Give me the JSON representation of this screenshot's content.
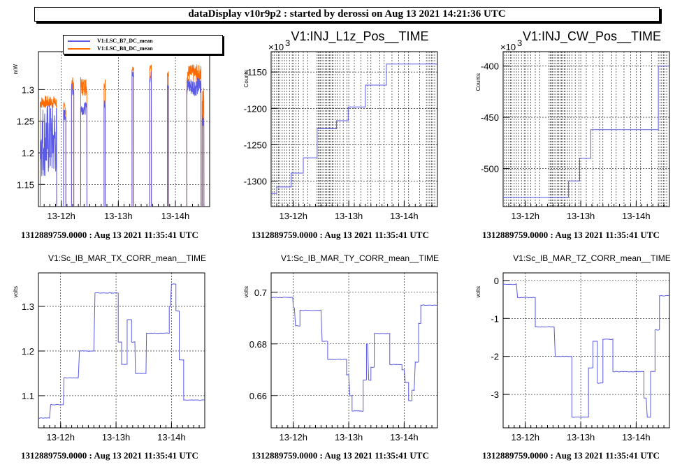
{
  "header": {
    "title": "dataDisplay v10r9p2 : started by derossi on Aug 13 2021 14:21:36 UTC"
  },
  "colors": {
    "blue": "#5a5ae6",
    "orange": "#ff6a00"
  },
  "footers": [
    "1312889759.0000 : Aug 13 2021 11:35:41 UTC",
    "1312889759.0000 : Aug 13 2021 11:35:41 UTC",
    "1312889759.0000 : Aug 13 2021 11:35:41 UTC",
    "1312889759.0000 : Aug 13 2021 11:35:41 UTC",
    "1312889759.0000 : Aug 13 2021 11:35:41 UTC",
    "1312889759.0000 : Aug 13 2021 11:35:41 UTC"
  ],
  "legend": [
    {
      "label": "V1:LSC_B7_DC_mean",
      "color": "#5a5ae6"
    },
    {
      "label": "V1:LSC_B8_DC_mean",
      "color": "#ff6a00"
    }
  ],
  "chart_data": [
    {
      "type": "line",
      "title": "",
      "xlabel": "",
      "ylabel": "mW",
      "x_ticks": [
        "13-12h",
        "13-13h",
        "13-14h"
      ],
      "x_range_hours": [
        11.6,
        14.6
      ],
      "x_tick_hours": [
        12,
        13,
        14
      ],
      "ylim": [
        1.115,
        1.36
      ],
      "yticks": [
        1.15,
        1.2,
        1.25,
        1.3
      ],
      "grid": true,
      "series": [
        {
          "name": "V1:LSC_B8_DC_mean",
          "color": "#ff6a00",
          "bursts": [
            [
              11.63,
              11.92,
              1.27,
              1.29
            ],
            [
              12.04,
              12.08,
              1.26,
              1.28
            ],
            [
              12.18,
              12.22,
              1.3,
              1.32
            ],
            [
              12.34,
              12.45,
              1.29,
              1.32
            ],
            [
              12.75,
              12.77,
              1.3,
              1.32
            ],
            [
              13.24,
              13.27,
              1.33,
              1.34
            ],
            [
              13.55,
              13.58,
              1.33,
              1.34
            ],
            [
              13.86,
              13.88,
              1.32,
              1.33
            ],
            [
              14.2,
              14.45,
              1.31,
              1.34
            ],
            [
              14.47,
              14.5,
              1.24,
              1.31
            ]
          ]
        },
        {
          "name": "V1:LSC_B7_DC_mean",
          "color": "#5a5ae6",
          "bursts": [
            [
              11.63,
              11.92,
              1.16,
              1.28
            ],
            [
              12.04,
              12.08,
              1.25,
              1.27
            ],
            [
              12.18,
              12.22,
              1.29,
              1.31
            ],
            [
              12.34,
              12.45,
              1.26,
              1.28
            ],
            [
              12.75,
              12.77,
              1.27,
              1.29
            ],
            [
              13.24,
              13.27,
              1.32,
              1.33
            ],
            [
              13.55,
              13.58,
              1.31,
              1.33
            ],
            [
              13.86,
              13.88,
              1.3,
              1.32
            ],
            [
              14.2,
              14.45,
              1.29,
              1.32
            ],
            [
              14.47,
              14.5,
              1.24,
              1.27
            ]
          ]
        }
      ]
    },
    {
      "type": "line",
      "title": "V1:INJ_L1z_Pos__TIME",
      "exponent_label": "×10",
      "ylabel": "Counts",
      "x_ticks": [
        "13-12h",
        "13-13h",
        "13-14h"
      ],
      "x_range_hours": [
        11.6,
        14.6
      ],
      "x_tick_hours": [
        12,
        13,
        14
      ],
      "ylim": [
        -1335,
        -1122
      ],
      "yticks": [
        -1300,
        -1250,
        -1200,
        -1150
      ],
      "grid": true,
      "dense_vertical_grid_hours": [
        11.63,
        11.66,
        11.7,
        11.73,
        11.76,
        11.8,
        11.84,
        11.88,
        11.93,
        11.98,
        12.05,
        12.1,
        12.18,
        12.26,
        12.43,
        12.45,
        12.47,
        12.49,
        12.52,
        12.55,
        12.58,
        12.6,
        12.63,
        12.65,
        12.68,
        12.7,
        12.72,
        12.76,
        12.79,
        12.84,
        12.9,
        12.97,
        13.1,
        13.22,
        13.34,
        13.4,
        13.56,
        13.64,
        13.78,
        13.9,
        14.08,
        14.28,
        14.4,
        14.43,
        14.46,
        14.49,
        14.52,
        14.55
      ],
      "series": [
        {
          "name": "",
          "color": "#5a5ae6",
          "steps": [
            [
              11.6,
              -1317
            ],
            [
              11.7,
              -1308
            ],
            [
              11.96,
              -1289
            ],
            [
              12.18,
              -1268
            ],
            [
              12.43,
              -1228
            ],
            [
              12.78,
              -1217
            ],
            [
              12.99,
              -1198
            ],
            [
              13.3,
              -1168
            ],
            [
              13.68,
              -1139
            ],
            [
              14.6,
              -1139
            ]
          ]
        }
      ]
    },
    {
      "type": "line",
      "title": "V1:INJ_CW_Pos__TIME",
      "exponent_label": "×10",
      "ylabel": "Counts",
      "x_ticks": [
        "13-12h",
        "13-13h",
        "13-14h"
      ],
      "x_range_hours": [
        11.6,
        14.6
      ],
      "x_tick_hours": [
        12,
        13,
        14
      ],
      "ylim": [
        -537,
        -386
      ],
      "yticks": [
        -500,
        -450,
        -400
      ],
      "grid": true,
      "dense_vertical_grid_hours": [
        11.63,
        11.66,
        11.7,
        11.73,
        11.76,
        11.8,
        11.84,
        11.88,
        11.93,
        11.98,
        12.05,
        12.1,
        12.18,
        12.26,
        12.43,
        12.45,
        12.47,
        12.49,
        12.52,
        12.55,
        12.58,
        12.6,
        12.63,
        12.65,
        12.68,
        12.7,
        12.72,
        12.76,
        12.79,
        12.84,
        12.9,
        12.97,
        13.1,
        13.22,
        13.34,
        13.4,
        13.56,
        13.64,
        13.78,
        13.9,
        14.08,
        14.28,
        14.4,
        14.43,
        14.46,
        14.49,
        14.52,
        14.55
      ],
      "series": [
        {
          "name": "",
          "color": "#5a5ae6",
          "steps": [
            [
              11.6,
              -528
            ],
            [
              12.72,
              -528
            ],
            [
              12.78,
              -512
            ],
            [
              12.98,
              -490
            ],
            [
              13.18,
              -462
            ],
            [
              14.12,
              -462
            ],
            [
              14.4,
              -400
            ],
            [
              14.6,
              -400
            ]
          ]
        }
      ]
    },
    {
      "type": "line",
      "title": "V1:Sc_IB_MAR_TX_CORR_mean__TIME",
      "ylabel": "volts",
      "x_ticks": [
        "13-12h",
        "13-13h",
        "13-14h"
      ],
      "x_range_hours": [
        11.6,
        14.6
      ],
      "x_tick_hours": [
        12,
        13,
        14
      ],
      "ylim": [
        1.028,
        1.375
      ],
      "yticks": [
        1.1,
        1.2,
        1.3
      ],
      "grid": true,
      "series": [
        {
          "name": "",
          "color": "#5a5ae6",
          "points": [
            [
              11.6,
              1.05
            ],
            [
              11.8,
              1.05
            ],
            [
              11.82,
              1.08
            ],
            [
              12.03,
              1.08
            ],
            [
              12.06,
              1.14
            ],
            [
              12.3,
              1.14
            ],
            [
              12.34,
              1.2
            ],
            [
              12.58,
              1.2
            ],
            [
              12.62,
              1.33
            ],
            [
              12.92,
              1.33
            ],
            [
              13.04,
              1.22
            ],
            [
              13.1,
              1.17
            ],
            [
              13.2,
              1.27
            ],
            [
              13.28,
              1.22
            ],
            [
              13.35,
              1.15
            ],
            [
              13.5,
              1.15
            ],
            [
              13.55,
              1.24
            ],
            [
              13.88,
              1.24
            ],
            [
              13.96,
              1.3
            ],
            [
              14.0,
              1.35
            ],
            [
              14.08,
              1.29
            ],
            [
              14.14,
              1.18
            ],
            [
              14.22,
              1.09
            ],
            [
              14.6,
              1.09
            ]
          ]
        }
      ]
    },
    {
      "type": "line",
      "title": "V1:Sc_IB_MAR_TY_CORR_mean__TIME",
      "ylabel": "volts",
      "x_ticks": [
        "13-12h",
        "13-13h",
        "13-14h"
      ],
      "x_range_hours": [
        11.6,
        14.6
      ],
      "x_tick_hours": [
        12,
        13,
        14
      ],
      "ylim": [
        0.6475,
        0.7075
      ],
      "yticks": [
        0.66,
        0.68,
        0.7
      ],
      "grid": true,
      "series": [
        {
          "name": "",
          "color": "#5a5ae6",
          "points": [
            [
              11.6,
              0.698
            ],
            [
              11.95,
              0.698
            ],
            [
              12.0,
              0.694
            ],
            [
              12.04,
              0.687
            ],
            [
              12.12,
              0.693
            ],
            [
              12.48,
              0.693
            ],
            [
              12.52,
              0.681
            ],
            [
              12.62,
              0.674
            ],
            [
              12.9,
              0.674
            ],
            [
              12.96,
              0.668
            ],
            [
              13.02,
              0.66
            ],
            [
              13.06,
              0.654
            ],
            [
              13.2,
              0.654
            ],
            [
              13.26,
              0.666
            ],
            [
              13.32,
              0.68
            ],
            [
              13.36,
              0.666
            ],
            [
              13.4,
              0.671
            ],
            [
              13.46,
              0.684
            ],
            [
              13.68,
              0.684
            ],
            [
              13.74,
              0.672
            ],
            [
              13.86,
              0.672
            ],
            [
              13.96,
              0.67
            ],
            [
              14.02,
              0.665
            ],
            [
              14.08,
              0.658
            ],
            [
              14.14,
              0.662
            ],
            [
              14.2,
              0.673
            ],
            [
              14.26,
              0.688
            ],
            [
              14.3,
              0.695
            ],
            [
              14.6,
              0.694
            ]
          ]
        }
      ]
    },
    {
      "type": "line",
      "title": "V1:Sc_IB_MAR_TZ_CORR_mean__TIME",
      "ylabel": "volts",
      "x_ticks": [
        "13-12h",
        "13-13h",
        "13-14h"
      ],
      "x_range_hours": [
        11.6,
        14.6
      ],
      "x_tick_hours": [
        12,
        13,
        14
      ],
      "ylim": [
        -3.88,
        0.2
      ],
      "yticks": [
        -3,
        -2,
        -1,
        0
      ],
      "grid": true,
      "series": [
        {
          "name": "",
          "color": "#5a5ae6",
          "points": [
            [
              11.6,
              -0.1
            ],
            [
              11.82,
              -0.1
            ],
            [
              11.86,
              -0.45
            ],
            [
              12.12,
              -0.45
            ],
            [
              12.18,
              -1.22
            ],
            [
              12.48,
              -1.22
            ],
            [
              12.54,
              -2.0
            ],
            [
              12.72,
              -2.0
            ],
            [
              12.84,
              -3.6
            ],
            [
              13.06,
              -3.6
            ],
            [
              13.14,
              -2.3
            ],
            [
              13.22,
              -1.6
            ],
            [
              13.3,
              -2.7
            ],
            [
              13.4,
              -1.55
            ],
            [
              13.52,
              -1.55
            ],
            [
              13.58,
              -2.4
            ],
            [
              14.06,
              -2.4
            ],
            [
              14.14,
              -3.1
            ],
            [
              14.2,
              -3.6
            ],
            [
              14.26,
              -2.4
            ],
            [
              14.34,
              -1.3
            ],
            [
              14.42,
              -0.4
            ],
            [
              14.6,
              -0.4
            ]
          ]
        }
      ]
    }
  ]
}
